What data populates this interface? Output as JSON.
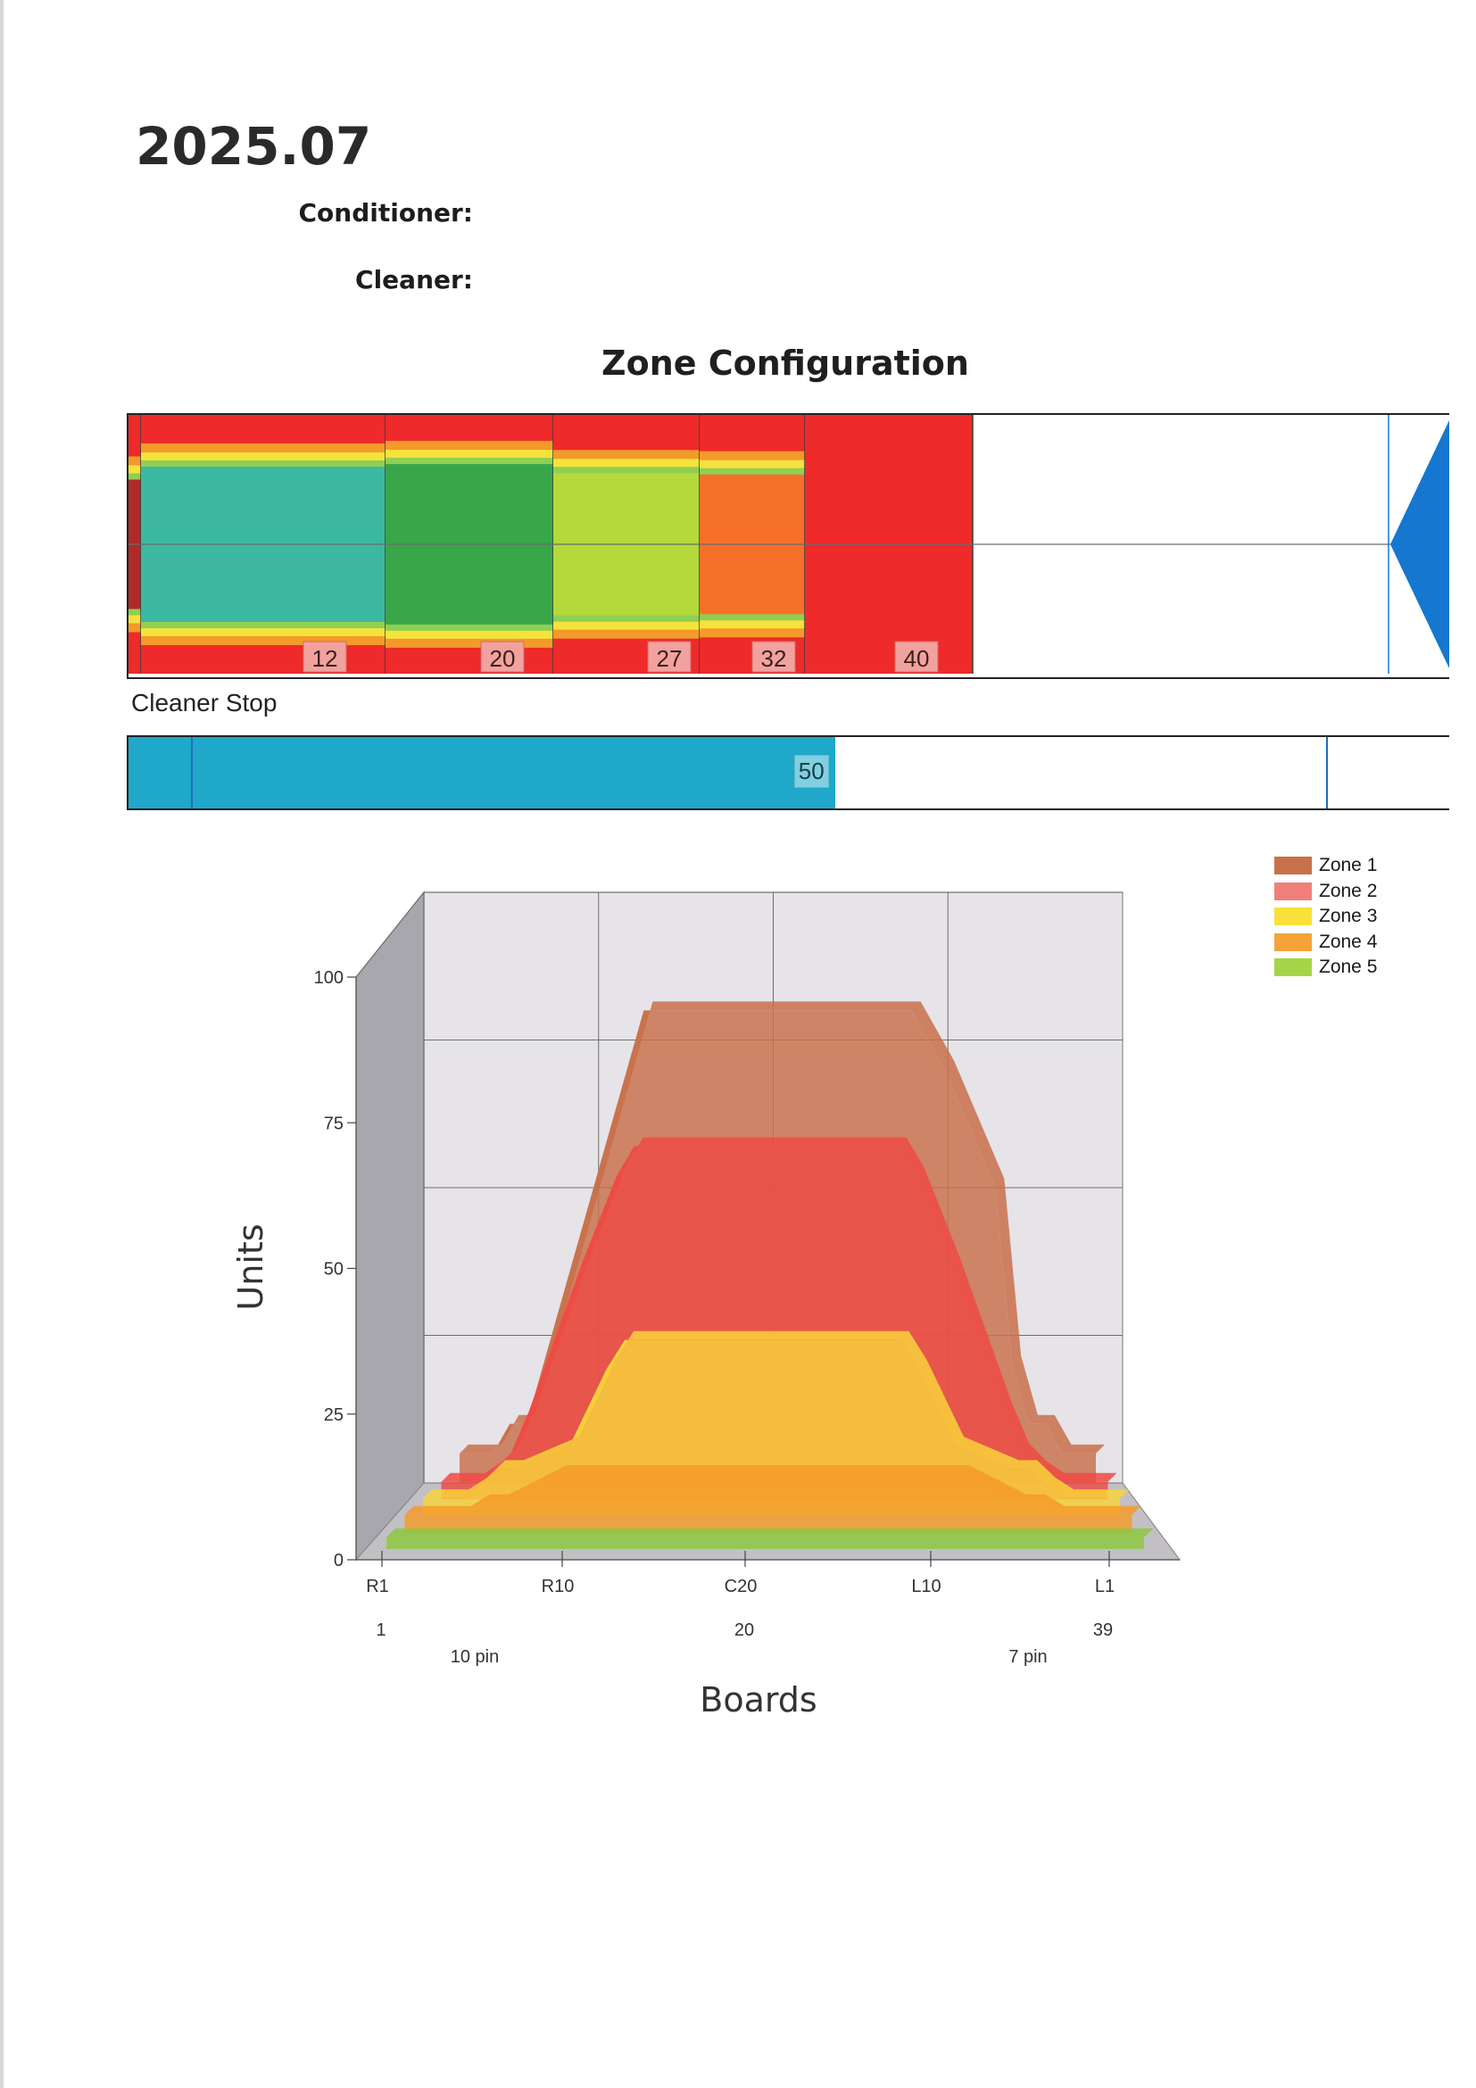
{
  "header": {
    "date": "2025.07",
    "conditioner_label": "Conditioner:",
    "cleaner_label": "Cleaner:"
  },
  "zone_configuration": {
    "title": "Zone Configuration",
    "markers": [
      "12",
      "20",
      "27",
      "32",
      "40"
    ],
    "colors": {
      "red": "#ee2a2a",
      "teal": "#3cb8a0",
      "green": "#3aa64a",
      "lime": "#b4d93a",
      "orange": "#f5712a",
      "yellow": "#f6e23c",
      "blue": "#1577cf"
    }
  },
  "cleaner_stop": {
    "label": "Cleaner Stop",
    "value": "50",
    "fill_fraction": 0.535,
    "color": "#1fa8c9"
  },
  "legend": {
    "items": [
      {
        "label": "Zone 1",
        "color": "#c8704a"
      },
      {
        "label": "Zone 2",
        "color": "#f07f7a"
      },
      {
        "label": "Zone 3",
        "color": "#f8e13a"
      },
      {
        "label": "Zone 4",
        "color": "#f4a23a"
      },
      {
        "label": "Zone 5",
        "color": "#a5d448"
      }
    ]
  },
  "chart_data": {
    "type": "area",
    "title": "",
    "xlabel": "Boards",
    "ylabel": "Units",
    "ylim": [
      0,
      100
    ],
    "yticks": [
      "0",
      "25",
      "50",
      "75",
      "100"
    ],
    "x_ticks": [
      "R1",
      "R10",
      "C20",
      "L10",
      "L1"
    ],
    "x_numbers": [
      "1",
      "20",
      "39"
    ],
    "x_annotations": [
      "10 pin",
      "7 pin"
    ],
    "x": [
      1,
      3,
      4,
      5,
      6,
      9,
      11,
      12,
      14,
      20,
      26,
      27,
      28,
      30,
      33,
      34,
      35,
      36,
      37,
      39
    ],
    "series": [
      {
        "name": "Zone 1",
        "color": "#c8704a",
        "values": [
          5,
          5,
          10,
          10,
          20,
          50,
          70,
          80,
          80,
          80,
          80,
          80,
          80,
          70,
          50,
          20,
          10,
          10,
          5,
          5
        ]
      },
      {
        "name": "Zone 2",
        "color": "#ee4a44",
        "values": [
          3,
          3,
          5,
          8,
          15,
          40,
          55,
          60,
          60,
          60,
          60,
          60,
          55,
          40,
          15,
          8,
          5,
          3,
          3,
          3
        ]
      },
      {
        "name": "Zone 3",
        "color": "#f8d43a",
        "values": [
          3,
          3,
          5,
          8,
          8,
          12,
          25,
          30,
          30,
          30,
          30,
          30,
          25,
          12,
          8,
          8,
          5,
          3,
          3,
          3
        ]
      },
      {
        "name": "Zone 4",
        "color": "#f59a2a",
        "values": [
          3,
          3,
          3,
          5,
          5,
          10,
          10,
          10,
          10,
          10,
          10,
          10,
          10,
          10,
          5,
          5,
          3,
          3,
          3,
          3
        ]
      },
      {
        "name": "Zone 5",
        "color": "#8cc83e",
        "values": [
          2,
          2,
          2,
          2,
          2,
          2,
          2,
          2,
          2,
          2,
          2,
          2,
          2,
          2,
          2,
          2,
          2,
          2,
          2,
          2
        ]
      }
    ]
  }
}
